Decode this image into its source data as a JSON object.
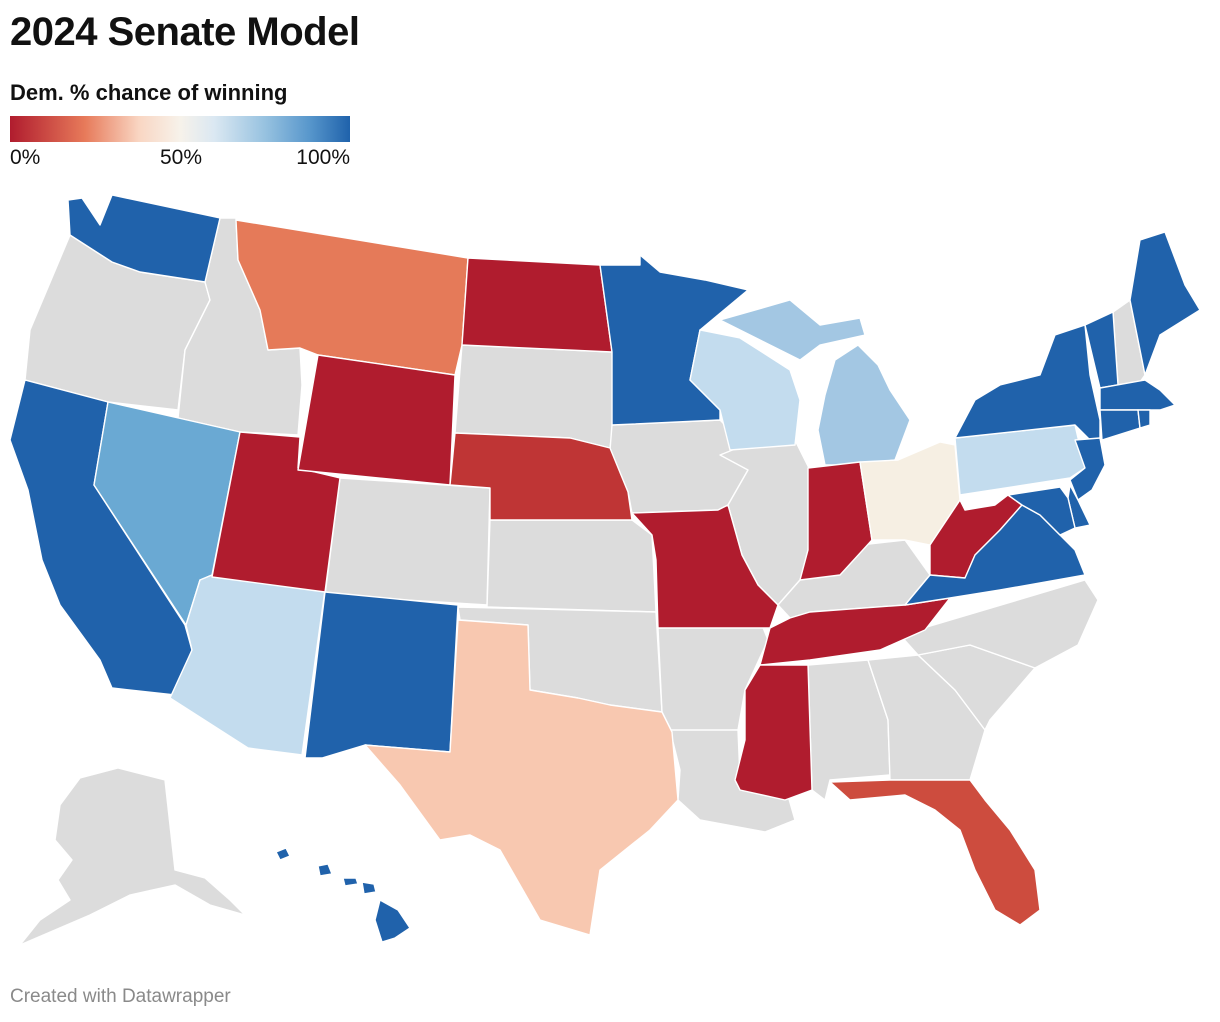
{
  "title": "2024 Senate Model",
  "legend": {
    "title": "Dem. % chance of winning",
    "ticks": [
      "0%",
      "50%",
      "100%"
    ]
  },
  "credit": "Created with Datawrapper",
  "colors": {
    "no_race": "#dcdcdc",
    "safe_rep": "#b01c2e",
    "likely_rep": "#bf3535",
    "lean_rep_fl": "#cd4c3e",
    "lean_rep_mt": "#e57a59",
    "tilt_rep": "#f8c8b0",
    "tossup": "#f6efe3",
    "tilt_dem": "#c3dcee",
    "lean_dem_mi": "#a3c7e3",
    "lean_dem_nv": "#6aa9d3",
    "safe_dem": "#2062ab"
  },
  "chart_data": {
    "type": "choropleth",
    "metric": "Dem. % chance of winning",
    "scale": [
      0,
      100
    ],
    "categories": {
      "safe_dem": [
        "WA",
        "CA",
        "NM",
        "MN",
        "ME",
        "VT",
        "NY",
        "MA",
        "RI",
        "CT",
        "NJ",
        "DE",
        "MD",
        "VA",
        "HI"
      ],
      "lean_dem": [
        "NV",
        "MI"
      ],
      "tilt_dem": [
        "AZ",
        "WI",
        "PA"
      ],
      "tossup": [
        "OH"
      ],
      "tilt_rep": [
        "TX"
      ],
      "lean_rep": [
        "MT",
        "FL"
      ],
      "likely_rep": [
        "NE"
      ],
      "safe_rep": [
        "ND",
        "WY",
        "UT",
        "MO",
        "IN",
        "TN",
        "MS",
        "WV"
      ],
      "no_race": [
        "OR",
        "ID",
        "SD",
        "CO",
        "KS",
        "OK",
        "IA",
        "IL",
        "AR",
        "LA",
        "AL",
        "GA",
        "SC",
        "NC",
        "KY",
        "NH",
        "AK"
      ]
    }
  }
}
